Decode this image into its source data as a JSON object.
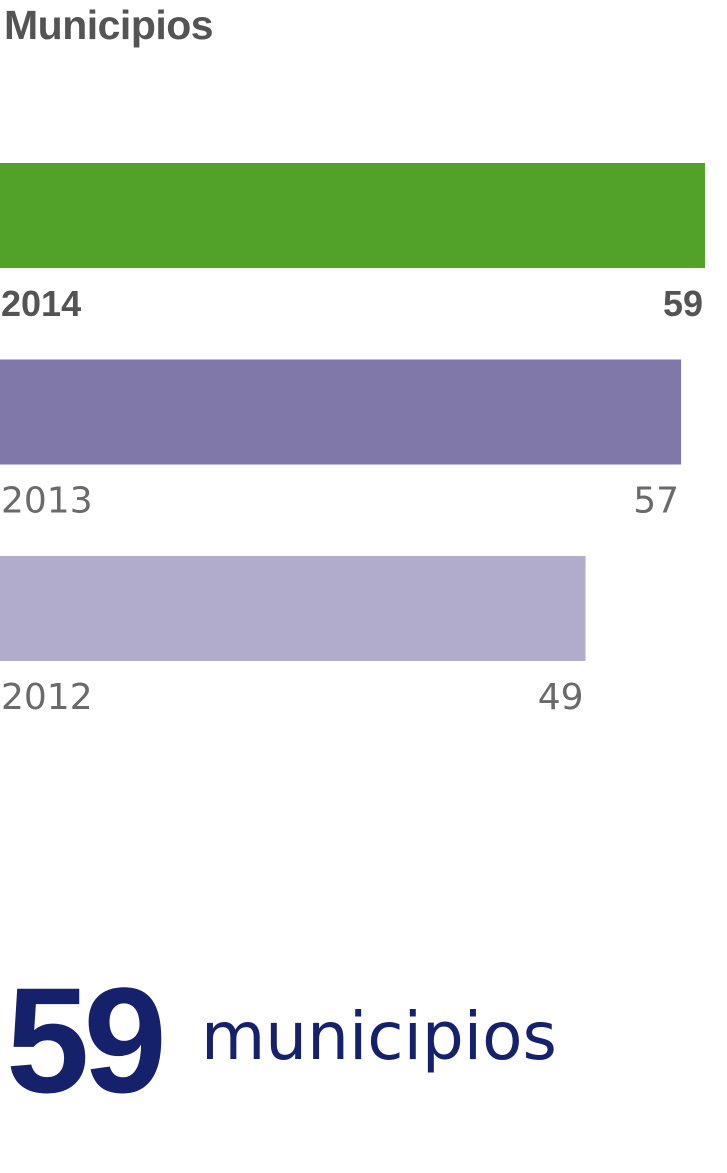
{
  "title": "Municipios",
  "chart_data": {
    "type": "bar",
    "orientation": "horizontal",
    "title": "Municipios",
    "categories": [
      "2014",
      "2013",
      "2012"
    ],
    "values": [
      59,
      57,
      49
    ],
    "xlim": [
      0,
      60.5
    ],
    "grid": false,
    "colors": [
      "#52a128",
      "#8178aa",
      "#b1abcc"
    ],
    "highlight": "2014"
  },
  "summary": {
    "value": "59",
    "unit": "municipios"
  }
}
